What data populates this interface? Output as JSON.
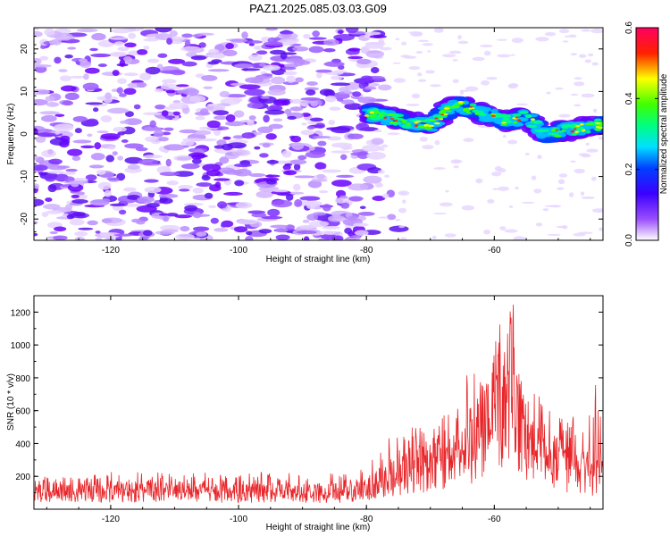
{
  "title": "PAZ1.2025.085.03.03.G09",
  "chart_data": [
    {
      "type": "heatmap",
      "xlabel": "Height of straight line (km)",
      "ylabel": "Frequency (Hz)",
      "xlim": [
        -132,
        -43
      ],
      "ylim": [
        -25,
        25
      ],
      "xticks": [
        -120,
        -100,
        -80,
        -60
      ],
      "xtick_labels": [
        "-120",
        "-100",
        "-80",
        "-60"
      ],
      "yticks": [
        -20,
        -10,
        0,
        10,
        20
      ],
      "ytick_labels": [
        "-20",
        "-10",
        "0",
        "10",
        "20"
      ],
      "colorbar": {
        "label": "Normalized spectral amplitude",
        "range": [
          0.0,
          0.6
        ],
        "ticks": [
          0.0,
          0.2,
          0.4,
          0.6
        ],
        "tick_labels": [
          "0.0",
          "0.2",
          "0.4",
          "0.6"
        ],
        "colors": [
          "#ffffff",
          "#7b00ff",
          "#0000ff",
          "#00ffff",
          "#00ff00",
          "#ffff00",
          "#ff0000",
          "#ff0080"
        ]
      },
      "features": [
        {
          "description": "diffuse purple noise",
          "x_range": [
            -132,
            -80
          ],
          "y_range": [
            -25,
            25
          ],
          "level": 0.08
        },
        {
          "description": "strong signal ridge",
          "points": [
            [
              -80,
              5
            ],
            [
              -74,
              3
            ],
            [
              -70,
              2
            ],
            [
              -66,
              7
            ],
            [
              -62,
              5
            ],
            [
              -58,
              3
            ],
            [
              -55,
              4
            ],
            [
              -52,
              0
            ],
            [
              -48,
              1
            ],
            [
              -44,
              2
            ]
          ],
          "peak_level": 0.6
        }
      ]
    },
    {
      "type": "line",
      "xlabel": "Height of straight line (km)",
      "ylabel": "SNR (10 * v/v)",
      "xlim": [
        -132,
        -43
      ],
      "ylim": [
        0,
        1300
      ],
      "xticks": [
        -120,
        -100,
        -80,
        -60
      ],
      "xtick_labels": [
        "-120",
        "-100",
        "-80",
        "-60"
      ],
      "yticks": [
        200,
        400,
        600,
        800,
        1000,
        1200
      ],
      "ytick_labels": [
        "200",
        "400",
        "600",
        "800",
        "1000",
        "1200"
      ],
      "color": "#e8262a",
      "envelope": {
        "x": [
          -132,
          -120,
          -110,
          -100,
          -90,
          -82,
          -80,
          -76,
          -72,
          -68,
          -64,
          -62,
          -60,
          -58,
          -57,
          -56,
          -54,
          -52,
          -50,
          -48,
          -46,
          -44,
          -43
        ],
        "y": [
          120,
          115,
          118,
          112,
          110,
          108,
          140,
          220,
          280,
          320,
          420,
          520,
          600,
          720,
          700,
          560,
          420,
          360,
          300,
          260,
          250,
          220,
          230
        ],
        "peak_max": [
          180,
          230,
          230,
          230,
          220,
          220,
          300,
          480,
          560,
          600,
          850,
          950,
          1000,
          1300,
          1250,
          1100,
          900,
          700,
          640,
          600,
          520,
          800,
          700
        ]
      }
    }
  ]
}
